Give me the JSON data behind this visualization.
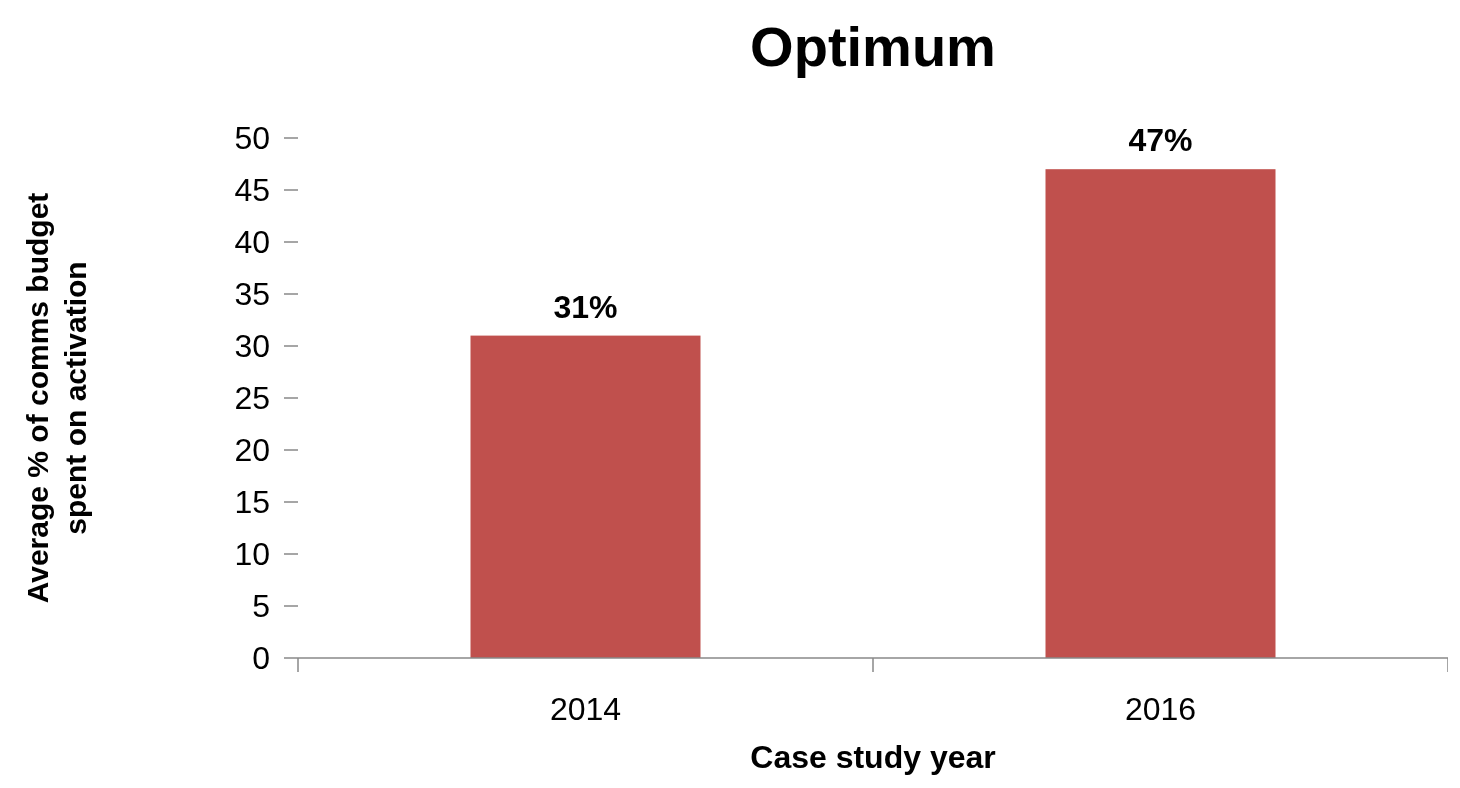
{
  "chart_data": {
    "type": "bar",
    "title": "Optimum",
    "xlabel": "Case study year",
    "ylabel": "Average % of comms budget spent on activation",
    "categories": [
      "2014",
      "2016"
    ],
    "values": [
      31,
      47
    ],
    "value_labels": [
      "31%",
      "47%"
    ],
    "color": "#c0504d",
    "ylim": [
      0,
      50
    ],
    "yticks": [
      0,
      5,
      10,
      15,
      20,
      25,
      30,
      35,
      40,
      45,
      50
    ],
    "grid": false
  }
}
